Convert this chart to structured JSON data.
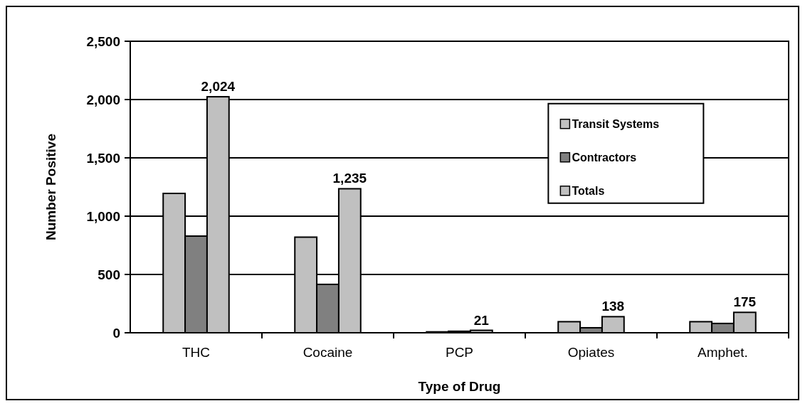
{
  "chart_data": {
    "type": "bar",
    "xlabel": "Type of Drug",
    "ylabel": "Number Positive",
    "categories": [
      "THC",
      "Cocaine",
      "PCP",
      "Opiates",
      "Amphet."
    ],
    "series": [
      {
        "name": "Transit Systems",
        "color": "#c0c0c0",
        "values": [
          1195,
          820,
          8,
          95,
          95
        ]
      },
      {
        "name": "Contractors",
        "color": "#808080",
        "values": [
          829,
          415,
          13,
          43,
          80
        ]
      },
      {
        "name": "Totals",
        "color": "#c0c0c0",
        "values": [
          2024,
          1235,
          21,
          138,
          175
        ],
        "value_labels": [
          "2,024",
          "1,235",
          "21",
          "138",
          "175"
        ]
      }
    ],
    "ylim": [
      0,
      2500
    ],
    "yticks": [
      {
        "value": 0,
        "label": "0"
      },
      {
        "value": 500,
        "label": "500"
      },
      {
        "value": 1000,
        "label": "1,000"
      },
      {
        "value": 1500,
        "label": "1,500"
      },
      {
        "value": 2000,
        "label": "2,000"
      },
      {
        "value": 2500,
        "label": "2,500"
      }
    ],
    "grid": "y",
    "legend": "top right"
  }
}
